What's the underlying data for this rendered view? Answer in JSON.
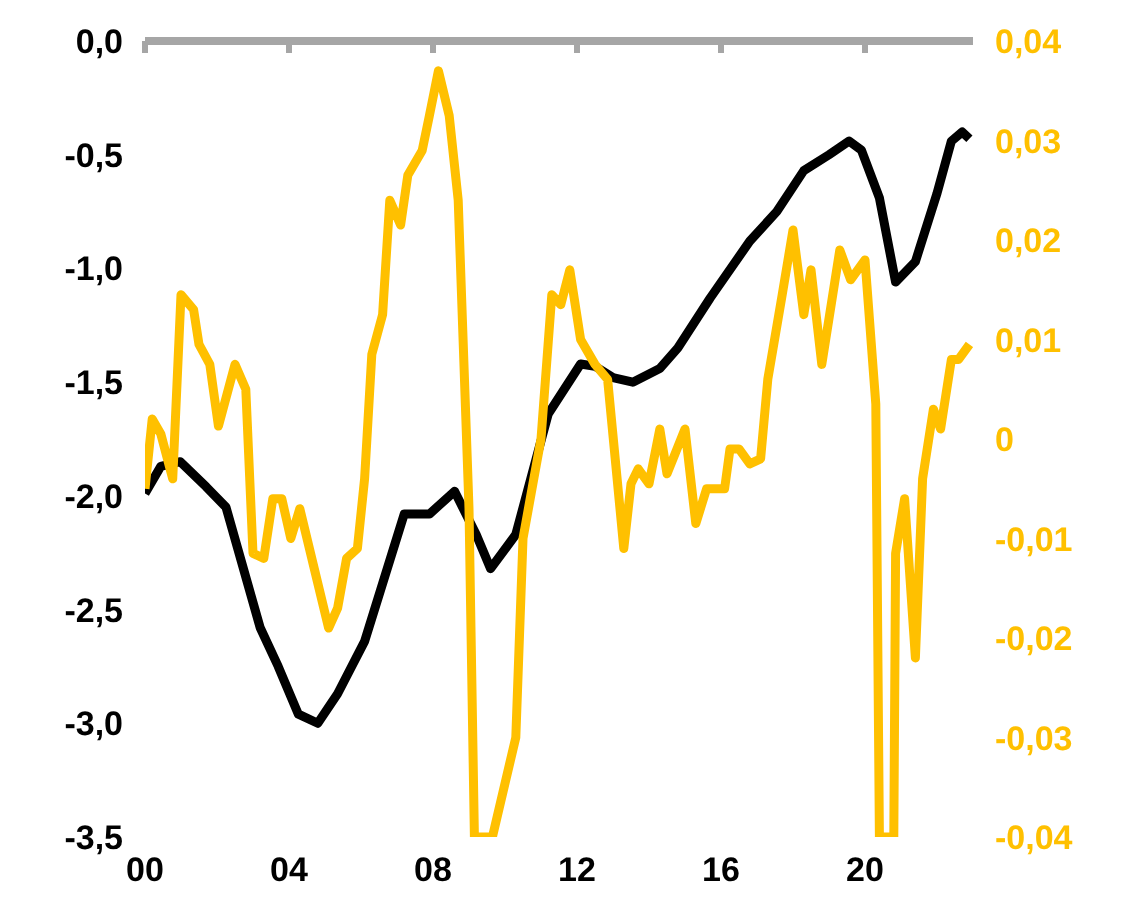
{
  "chart_data": {
    "type": "line",
    "xlim": [
      2000,
      2023
    ],
    "xticks": [
      {
        "value": 2000,
        "label": "00"
      },
      {
        "value": 2004,
        "label": "04"
      },
      {
        "value": 2008,
        "label": "08"
      },
      {
        "value": 2012,
        "label": "12"
      },
      {
        "value": 2016,
        "label": "16"
      },
      {
        "value": 2020,
        "label": "20"
      }
    ],
    "ylim": [
      -3.5,
      0
    ],
    "yticks": [
      {
        "value": -3.5,
        "label": "-3,5"
      },
      {
        "value": -3.0,
        "label": "-3,0"
      },
      {
        "value": -2.5,
        "label": "-2,5"
      },
      {
        "value": -2.0,
        "label": "-2,0"
      },
      {
        "value": -1.5,
        "label": "-1,5"
      },
      {
        "value": -1.0,
        "label": "-1,0"
      },
      {
        "value": -0.5,
        "label": "-0,5"
      },
      {
        "value": 0,
        "label": "0,0"
      }
    ],
    "y2lim": [
      -0.04,
      0.04
    ],
    "y2ticks": [
      {
        "value": -0.04,
        "label": "-0,04"
      },
      {
        "value": -0.03,
        "label": "-0,03"
      },
      {
        "value": -0.02,
        "label": "-0,02"
      },
      {
        "value": -0.01,
        "label": "-0,01"
      },
      0,
      {
        "value": 0.01,
        "label": "0,01"
      },
      {
        "value": 0.02,
        "label": "0,02"
      },
      {
        "value": 0.03,
        "label": "0,03"
      },
      {
        "value": 0.04,
        "label": "0,04"
      }
    ],
    "grid": false,
    "series": [
      {
        "color": "#000000",
        "x": [
          2000.0,
          2000.44,
          2000.98,
          2001.7,
          2002.25,
          2003.2,
          2003.7,
          2004.26,
          2004.8,
          2005.35,
          2006.1,
          2007.2,
          2007.9,
          2008.6,
          2009.2,
          2009.6,
          2010.3,
          2011.2,
          2012.1,
          2012.5,
          2013.0,
          2013.55,
          2014.3,
          2014.8,
          2015.7,
          2016.8,
          2017.55,
          2018.3,
          2019.0,
          2019.56,
          2019.9,
          2020.4,
          2020.85,
          2021.4,
          2022.0,
          2022.4,
          2022.7,
          2022.9
        ],
        "values": [
          -1.99,
          -1.87,
          -1.85,
          -1.96,
          -2.05,
          -2.58,
          -2.75,
          -2.96,
          -3.0,
          -2.87,
          -2.64,
          -2.08,
          -2.08,
          -1.98,
          -2.17,
          -2.32,
          -2.17,
          -1.64,
          -1.42,
          -1.43,
          -1.48,
          -1.5,
          -1.44,
          -1.35,
          -1.13,
          -0.88,
          -0.75,
          -0.57,
          -0.5,
          -0.44,
          -0.48,
          -0.69,
          -1.06,
          -0.97,
          -0.67,
          -0.44,
          -0.4,
          -0.43
        ]
      },
      {
        "color": "#ffc000",
        "axis": "y2",
        "x": [
          2000.0,
          2000.2,
          2000.44,
          2000.77,
          2001.0,
          2001.35,
          2001.5,
          2001.8,
          2002.04,
          2002.5,
          2002.8,
          2003.0,
          2003.3,
          2003.55,
          2003.8,
          2004.05,
          2004.3,
          2004.7,
          2005.1,
          2005.35,
          2005.6,
          2005.9,
          2006.1,
          2006.3,
          2006.6,
          2006.8,
          2007.1,
          2007.3,
          2007.7,
          2007.9,
          2008.15,
          2008.45,
          2008.7,
          2009.0,
          2009.15,
          2009.65,
          2010.3,
          2010.5,
          2011.0,
          2011.3,
          2011.55,
          2011.8,
          2012.1,
          2012.5,
          2012.85,
          2013.3,
          2013.5,
          2013.7,
          2014.0,
          2014.3,
          2014.5,
          2015.0,
          2015.3,
          2015.6,
          2016.1,
          2016.25,
          2016.5,
          2016.8,
          2017.1,
          2017.3,
          2017.7,
          2018.0,
          2018.3,
          2018.5,
          2018.8,
          2019.3,
          2019.6,
          2020.0,
          2020.3,
          2020.4,
          2020.8,
          2020.85,
          2021.1,
          2021.4,
          2021.6,
          2021.9,
          2022.1,
          2022.4,
          2022.6,
          2022.9
        ],
        "values": [
          -0.005,
          0.002,
          0.0005,
          -0.004,
          0.0145,
          0.013,
          0.0095,
          0.0075,
          0.0013,
          0.0075,
          0.005,
          -0.0115,
          -0.012,
          -0.006,
          -0.006,
          -0.01,
          -0.007,
          -0.013,
          -0.019,
          -0.017,
          -0.012,
          -0.011,
          -0.004,
          0.0085,
          0.0125,
          0.024,
          0.0215,
          0.0265,
          0.029,
          0.0325,
          0.037,
          0.0325,
          0.024,
          -0.007,
          -0.04,
          -0.04,
          -0.03,
          -0.01,
          0.0,
          0.0145,
          0.0135,
          0.017,
          0.01,
          0.0075,
          0.006,
          -0.011,
          -0.0045,
          -0.003,
          -0.0045,
          0.001,
          -0.0035,
          0.001,
          -0.0085,
          -0.005,
          -0.005,
          -0.001,
          -0.001,
          -0.0025,
          -0.002,
          0.006,
          0.0145,
          0.021,
          0.0125,
          0.017,
          0.0075,
          0.019,
          0.016,
          0.018,
          0.0035,
          -0.04,
          -0.04,
          -0.0115,
          -0.006,
          -0.022,
          -0.004,
          0.003,
          0.001,
          0.008,
          0.008,
          0.0095
        ]
      }
    ]
  }
}
